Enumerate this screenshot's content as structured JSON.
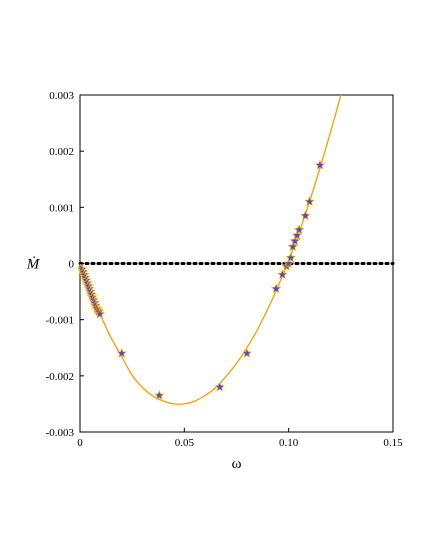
{
  "chart_data": {
    "type": "scatter",
    "title": "",
    "xlabel": "ω",
    "ylabel": "Ṁ",
    "xlim": [
      0,
      0.15
    ],
    "ylim": [
      -0.003,
      0.003
    ],
    "xticks": [
      0,
      0.05,
      0.1,
      0.15
    ],
    "xtick_labels": [
      "0",
      "0.05",
      "0.10",
      "0.15"
    ],
    "yticks": [
      0.003,
      0.002,
      0.001,
      0,
      -0.001,
      -0.002,
      -0.003
    ],
    "ytick_labels": [
      "0.003",
      "0.002",
      "0.001",
      "0",
      "-0.001",
      "-0.002",
      "-0.003"
    ],
    "grid": false,
    "legend": "none",
    "reference_line": {
      "y": 0,
      "style": "dotted",
      "color": "#000000"
    },
    "series": [
      {
        "kind": "curve",
        "color": "#f0a000",
        "x": [
          0,
          0.005,
          0.01,
          0.015,
          0.02,
          0.025,
          0.03,
          0.035,
          0.04,
          0.045,
          0.05,
          0.055,
          0.06,
          0.065,
          0.07,
          0.075,
          0.08,
          0.085,
          0.09,
          0.095,
          0.1,
          0.105,
          0.11,
          0.115,
          0.12,
          0.125
        ],
        "y": [
          0,
          -0.00048,
          -0.00093,
          -0.00133,
          -0.00166,
          -0.00199,
          -0.00221,
          -0.00236,
          -0.00245,
          -0.0025,
          -0.0025,
          -0.00245,
          -0.00235,
          -0.00221,
          -0.00201,
          -0.00178,
          -0.0015,
          -0.00118,
          -0.00081,
          -0.0004,
          5e-05,
          0.00055,
          0.0011,
          0.0017,
          0.00233,
          0.003
        ]
      },
      {
        "kind": "points",
        "marker": "star",
        "fill": "#4b4bd8",
        "stroke": "#ffb000",
        "x": [
          0.001,
          0.0015,
          0.002,
          0.0025,
          0.003,
          0.0035,
          0.004,
          0.0045,
          0.005,
          0.0055,
          0.006,
          0.0065,
          0.007,
          0.0075,
          0.008,
          0.0085,
          0.009,
          0.0095,
          0.02,
          0.038,
          0.067,
          0.08,
          0.094,
          0.097,
          0.099,
          0.1,
          0.101,
          0.102,
          0.103,
          0.104,
          0.105,
          0.108,
          0.11,
          0.115
        ],
        "y": [
          -0.0001,
          -0.00015,
          -0.0002,
          -0.00025,
          -0.0003,
          -0.00035,
          -0.0004,
          -0.00045,
          -0.0005,
          -0.00055,
          -0.0006,
          -0.00065,
          -0.0007,
          -0.00075,
          -0.0008,
          -0.00083,
          -0.00086,
          -0.0009,
          -0.0016,
          -0.00235,
          -0.0022,
          -0.0016,
          -0.00045,
          -0.0002,
          -5e-05,
          0.0,
          0.0001,
          0.0003,
          0.0004,
          0.0005,
          0.0006,
          0.00085,
          0.0011,
          0.00175
        ]
      }
    ]
  }
}
